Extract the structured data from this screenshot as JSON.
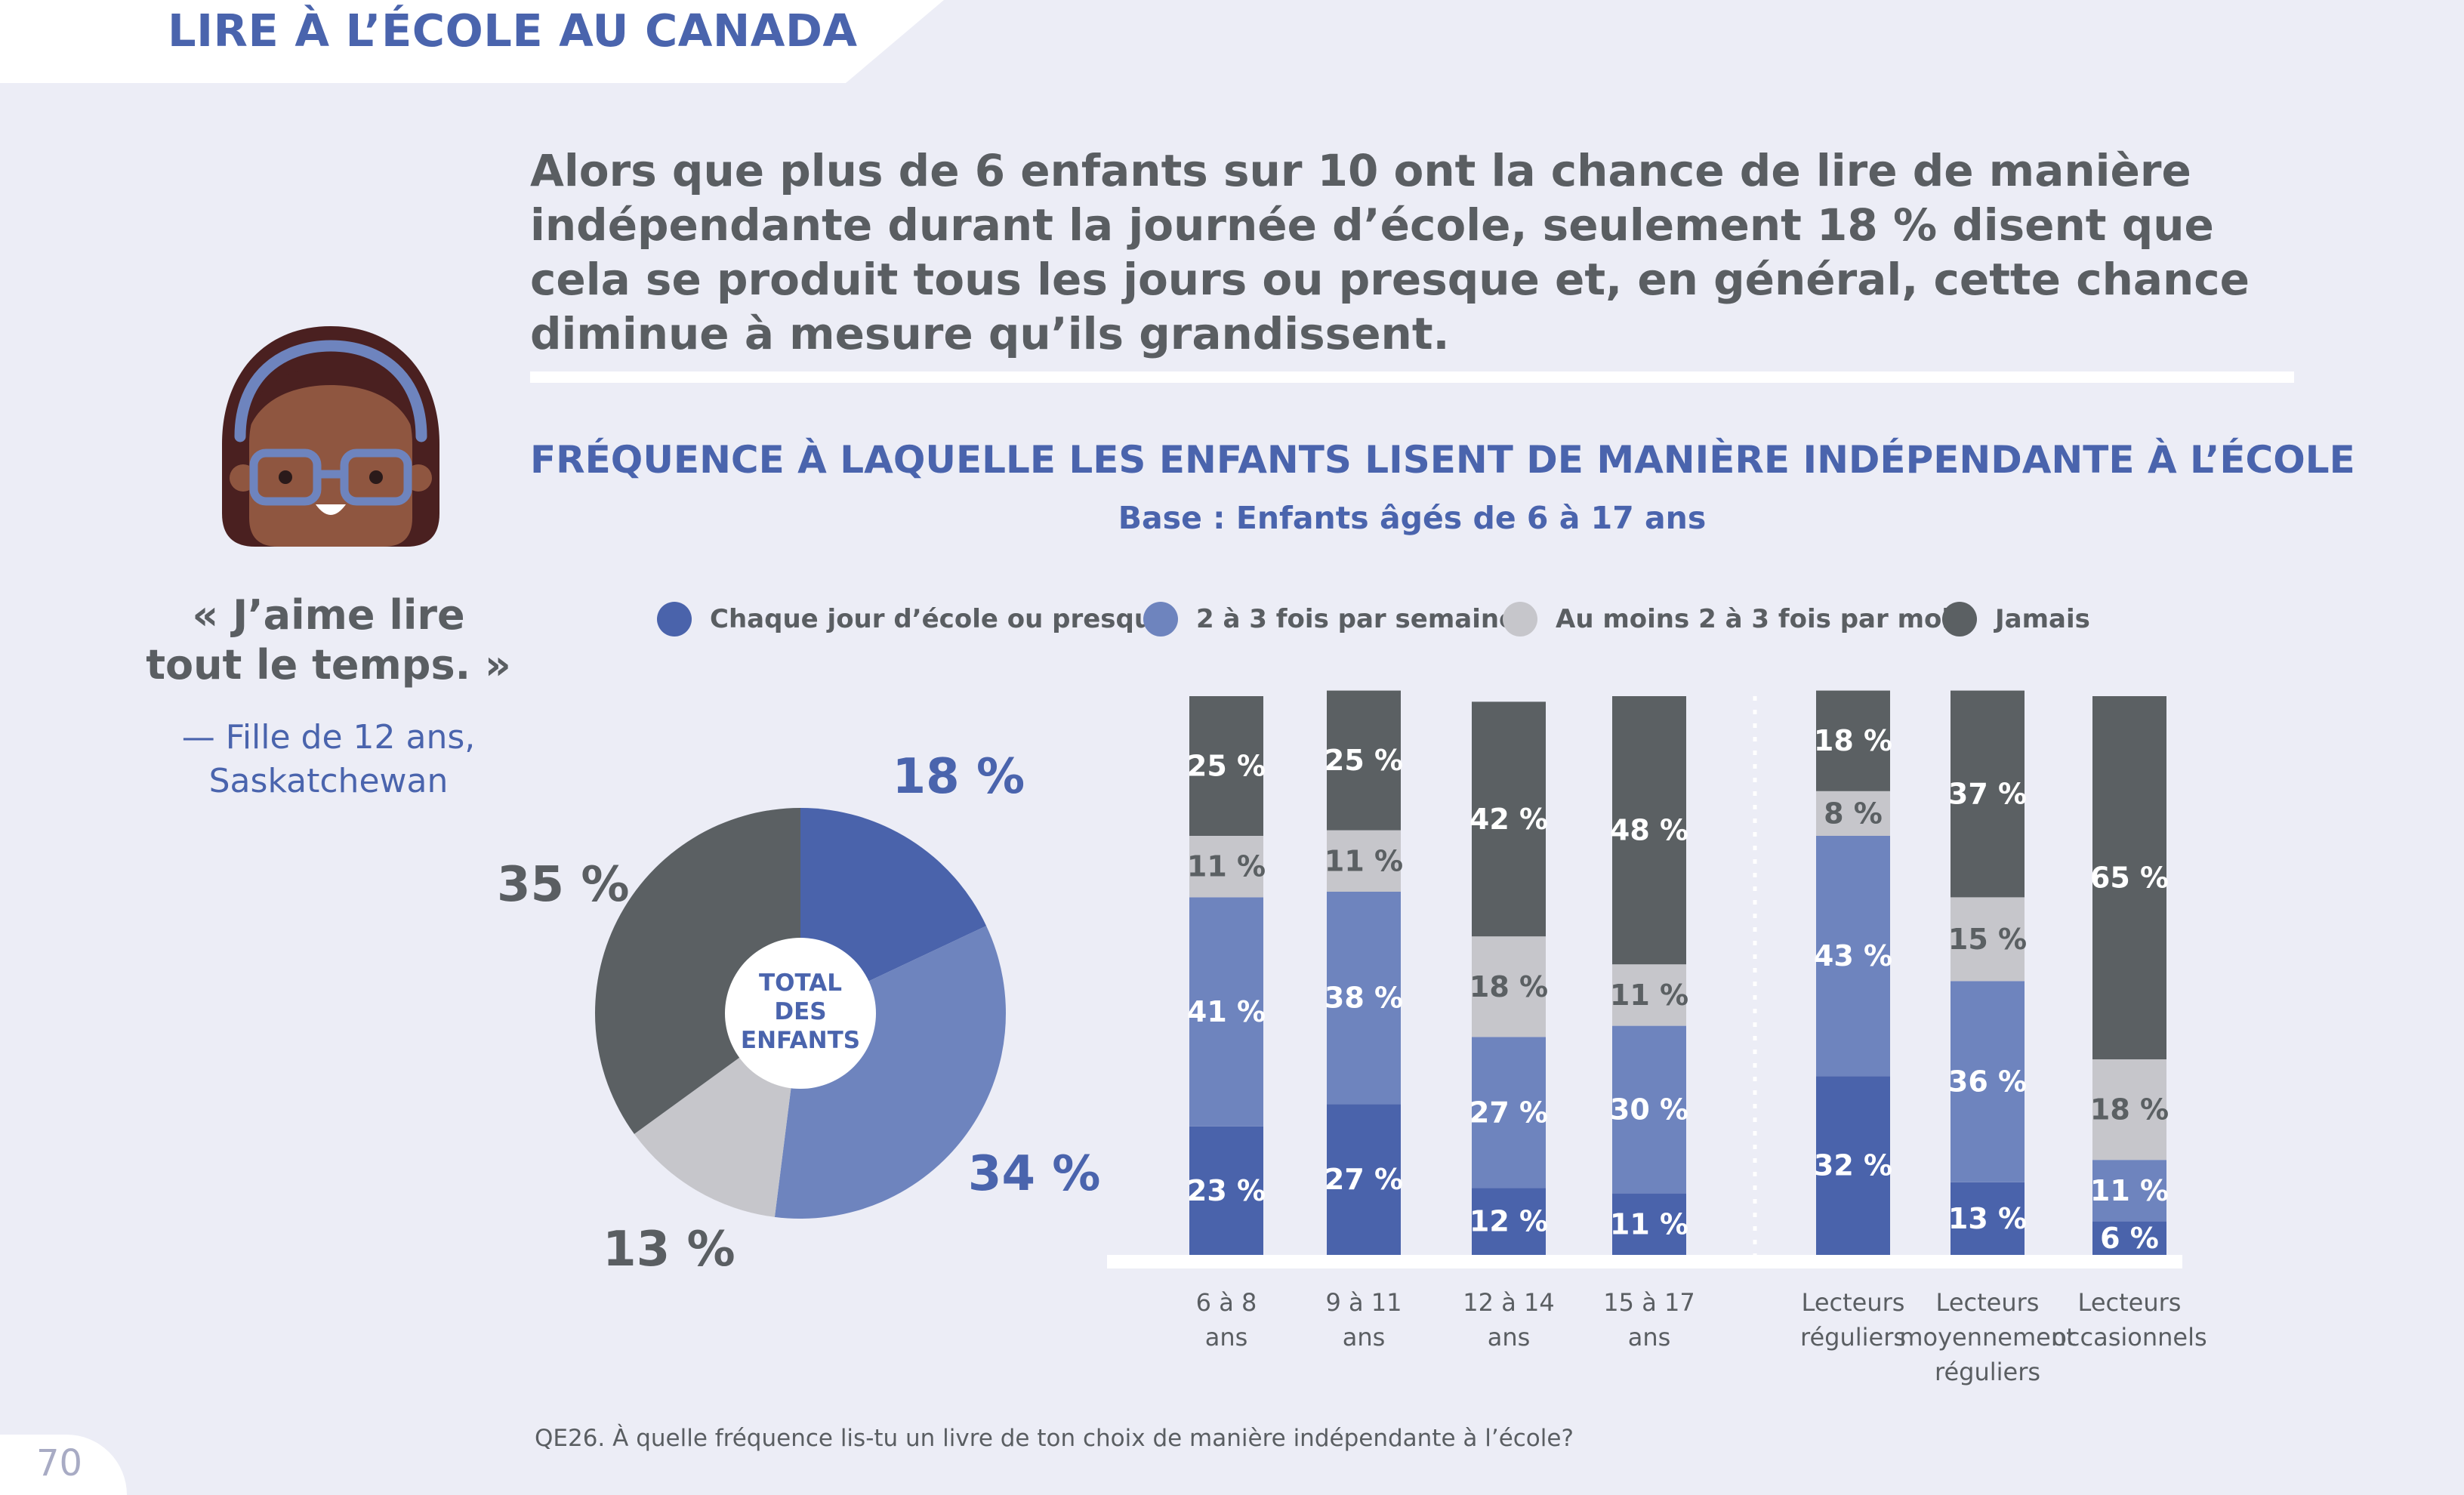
{
  "header": {
    "title": "LIRE À L’ÉCOLE AU CANADA"
  },
  "intro": {
    "text": "Alors que plus de 6 enfants sur 10 ont la chance de lire de manière indépendante durant la journée d’école, seulement 18 % disent que cela se produit tous les jours ou presque et, en général, cette chance diminue à mesure qu’ils grandissent."
  },
  "quote": {
    "line1": "« J’aime lire",
    "line2": "tout le temps. »",
    "attribution_line1": "— Fille de 12 ans,",
    "attribution_line2": "Saskatchewan",
    "avatar_icon": "girl-with-glasses-icon"
  },
  "chart": {
    "title": "FRÉQUENCE À LAQUELLE LES ENFANTS LISENT DE MANIÈRE INDÉPENDANTE À L’ÉCOLE",
    "subtitle": "Base : Enfants âgés de 6 à 17 ans"
  },
  "colors": {
    "daily": "#4a63ab",
    "weekly": "#6e84be",
    "monthly": "#c6c6cb",
    "never": "#5b6063",
    "accent": "#4a64ad",
    "text_gray": "#5a5e62",
    "background": "#ecedf6"
  },
  "chart_data": [
    {
      "type": "pie",
      "center_label": [
        "TOTAL",
        "DES",
        "ENFANTS"
      ],
      "slices": [
        {
          "name": "Chaque jour d’école ou presque",
          "value": 18,
          "label": "18 %"
        },
        {
          "name": "2 à 3 fois par semaine",
          "value": 34,
          "label": "34 %"
        },
        {
          "name": "Au moins 2 à 3 fois par mois",
          "value": 13,
          "label": "13 %"
        },
        {
          "name": "Jamais",
          "value": 35,
          "label": "35 %"
        }
      ]
    },
    {
      "type": "bar",
      "stacked": true,
      "orientation": "vertical",
      "legend_position": "top",
      "categories": [
        [
          "6 à 8",
          "ans"
        ],
        [
          "9 à 11",
          "ans"
        ],
        [
          "12 à 14",
          "ans"
        ],
        [
          "15 à 17",
          "ans"
        ],
        [
          "Lecteurs",
          "réguliers"
        ],
        [
          "Lecteurs",
          "moyennement",
          "réguliers"
        ],
        [
          "Lecteurs",
          "occasionnels"
        ]
      ],
      "series": [
        {
          "name": "Chaque jour d’école ou presque",
          "values": [
            23,
            27,
            12,
            11,
            32,
            13,
            6
          ]
        },
        {
          "name": "2 à 3 fois par semaine",
          "values": [
            41,
            38,
            27,
            30,
            43,
            36,
            11
          ]
        },
        {
          "name": "Au moins 2 à 3 fois par mois",
          "values": [
            11,
            11,
            18,
            11,
            8,
            15,
            18
          ]
        },
        {
          "name": "Jamais",
          "values": [
            25,
            25,
            42,
            48,
            18,
            37,
            65
          ]
        }
      ],
      "ylim": [
        0,
        100
      ]
    }
  ],
  "footnote": "QE26. À quelle fréquence lis-tu un livre de ton choix de manière indépendante à l’école?",
  "page": {
    "number": "70"
  }
}
